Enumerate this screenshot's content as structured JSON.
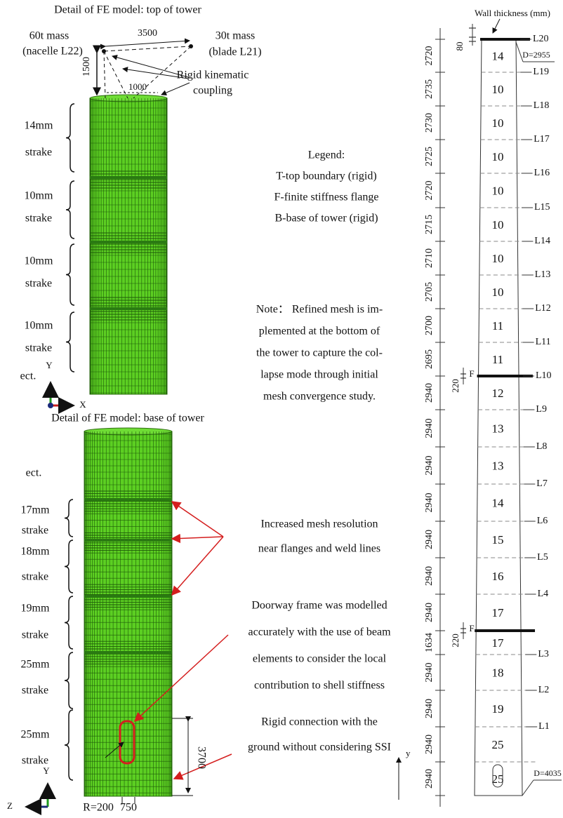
{
  "top_panel": {
    "title": "Detail of FE model: top of tower",
    "mass_60": [
      "60t mass",
      "(nacelle L22)"
    ],
    "mass_30": [
      "30t mass",
      "(blade L21)"
    ],
    "dim_3500": "3500",
    "dim_1500": "1500",
    "dim_1000": "1000",
    "coupling": [
      "Rigid kinematic",
      "coupling"
    ],
    "strakes": [
      [
        "14mm",
        "strake"
      ],
      [
        "10mm",
        "strake"
      ],
      [
        "10mm",
        "strake"
      ],
      [
        "10mm",
        "strake"
      ]
    ],
    "etc": "ect.",
    "axes": [
      "Y",
      "X"
    ]
  },
  "legend": {
    "title": "Legend:",
    "items": [
      "T-top boundary (rigid)",
      "F-finite stiffness flange",
      "B-base of tower (rigid)"
    ]
  },
  "note": [
    "Note： Refined mesh is im-",
    "plemented at the bottom of",
    "the tower to capture the col-",
    "lapse mode through initial",
    "mesh convergence study."
  ],
  "bottom_panel": {
    "title": "Detail of FE model: base of tower",
    "etc": "ect.",
    "strakes": [
      [
        "17mm",
        "strake"
      ],
      [
        "18mm",
        "strake"
      ],
      [
        "19mm",
        "strake"
      ],
      [
        "25mm",
        "strake"
      ],
      [
        "25mm",
        "strake"
      ]
    ],
    "annotations": [
      [
        "Increased mesh resolution",
        "near flanges and weld lines"
      ],
      [
        "Doorway frame was modelled",
        "accurately with the use of beam",
        "elements to consider the local",
        "contribution to shell stiffness"
      ],
      [
        "Rigid connection with the",
        "ground without considering SSI"
      ]
    ],
    "dim_3700": "3700",
    "radius": "R=200",
    "dim_750": "750",
    "axes": [
      "Y",
      "Z"
    ]
  },
  "section_diagram": {
    "title": "Wall thickness (mm)",
    "top_thickness_dim": "80",
    "top_diameter": "D=2955",
    "bottom_diameter": "D=4035",
    "flange_dims": [
      "220",
      "220"
    ],
    "flange_labels": [
      "F",
      "F"
    ],
    "segment_lengths": [
      2720,
      2735,
      2730,
      2725,
      2720,
      2715,
      2710,
      2705,
      2700,
      2695,
      2940,
      2940,
      2940,
      2940,
      2940,
      2940,
      2940,
      1634,
      2940,
      2940,
      2940,
      2940
    ],
    "thicknesses": [
      14,
      10,
      10,
      10,
      10,
      10,
      10,
      10,
      11,
      11,
      12,
      13,
      13,
      14,
      15,
      16,
      17,
      17,
      18,
      19,
      25,
      25
    ],
    "levels": [
      "L20",
      "L19",
      "L18",
      "L17",
      "L16",
      "L15",
      "L14",
      "L13",
      "L12",
      "L11",
      "L10",
      "L9",
      "L8",
      "L7",
      "L6",
      "L5",
      "L4",
      "L3",
      "L2",
      "L1"
    ],
    "axis": "y"
  }
}
